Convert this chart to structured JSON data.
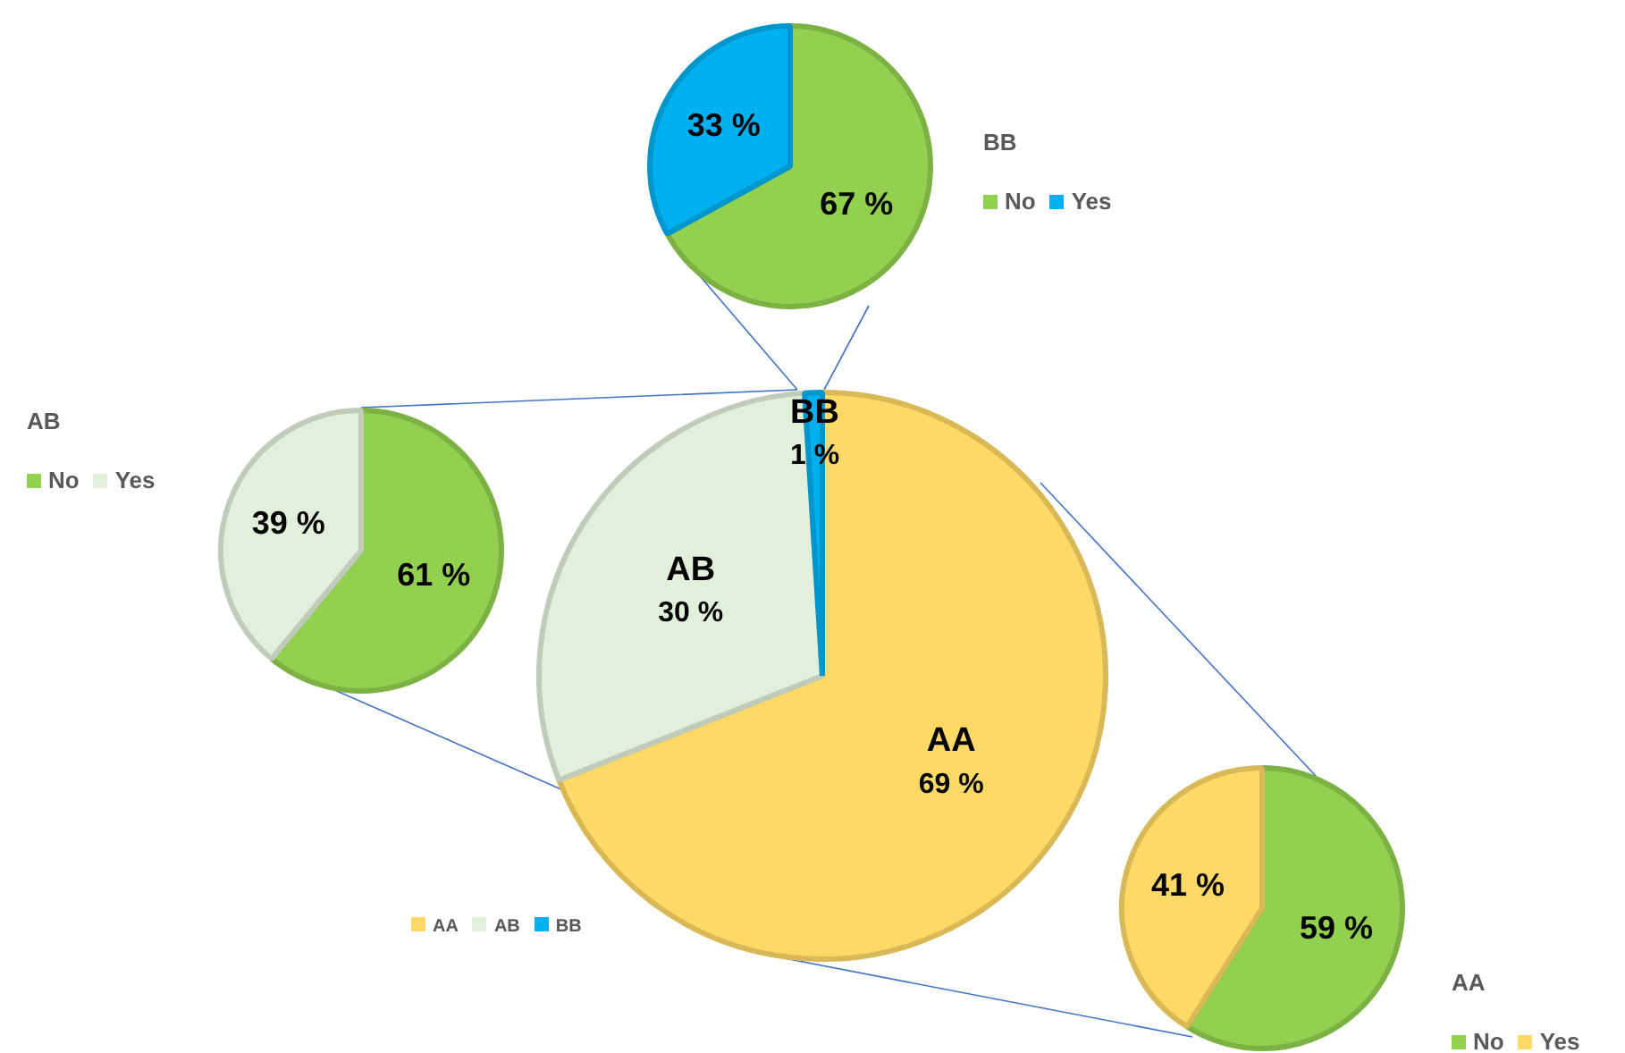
{
  "chart_data": [
    {
      "type": "pie",
      "title": "BB",
      "categories": [
        "No",
        "Yes"
      ],
      "values": [
        67,
        33
      ],
      "colors": [
        "#92d050",
        "#00b0f0"
      ],
      "value_labels": [
        "67 %",
        "33 %"
      ],
      "legend": "right"
    },
    {
      "type": "pie",
      "title": "AB",
      "categories": [
        "No",
        "Yes"
      ],
      "values": [
        61,
        39
      ],
      "colors": [
        "#92d050",
        "#e2efda"
      ],
      "value_labels": [
        "61 %",
        "39 %"
      ],
      "legend": "top left"
    },
    {
      "type": "pie",
      "categories": [
        "AA",
        "AB",
        "BB"
      ],
      "values": [
        69,
        30,
        1
      ],
      "colors": [
        "#ffd966",
        "#e2efda",
        "#00b0f0"
      ],
      "value_labels": [
        "69 %",
        "30 %",
        "1 %"
      ],
      "legend": "bottom left"
    },
    {
      "type": "pie",
      "title": "AA",
      "categories": [
        "No",
        "Yes"
      ],
      "values": [
        59,
        41
      ],
      "colors": [
        "#92d050",
        "#ffd966"
      ],
      "value_labels": [
        "59 %",
        "41 %"
      ],
      "legend": "bottom right"
    }
  ]
}
